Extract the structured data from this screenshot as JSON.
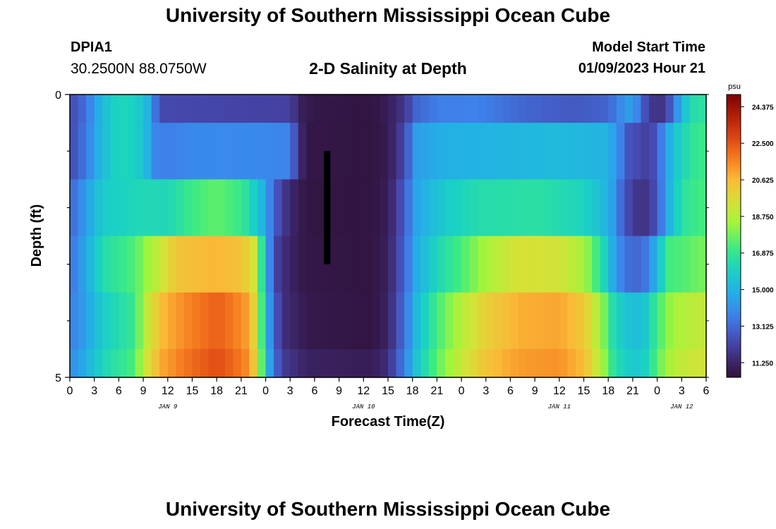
{
  "header": {
    "title": "University of Southern Mississippi Ocean Cube",
    "station_id": "DPIA1",
    "coordinates": "30.2500N  88.0750W",
    "subtitle": "2-D Salinity at Depth",
    "model_start_label": "Model Start Time",
    "model_start_value": "01/09/2023 Hour 21"
  },
  "footer": {
    "title": "University of Southern Mississippi Ocean Cube"
  },
  "chart_data": {
    "type": "heatmap",
    "title": "2-D Salinity at Depth",
    "xlabel": "Forecast Time(Z)",
    "ylabel": "Depth (ft)",
    "x_range_hours": [
      0,
      78
    ],
    "ylim": [
      0,
      5
    ],
    "y_tick_labels": [
      "0",
      "5"
    ],
    "x_tick_labels": [
      "0",
      "3",
      "6",
      "9",
      "12",
      "15",
      "18",
      "21",
      "0",
      "3",
      "6",
      "9",
      "12",
      "15",
      "18",
      "21",
      "0",
      "3",
      "6",
      "9",
      "12",
      "15",
      "18",
      "21",
      "0",
      "3",
      "6"
    ],
    "day_labels": [
      {
        "label": "JAN 9",
        "hour": 12
      },
      {
        "label": "JAN 10",
        "hour": 36
      },
      {
        "label": "JAN 11",
        "hour": 60
      },
      {
        "label": "JAN 12",
        "hour": 75
      }
    ],
    "colorbar": {
      "unit": "psu",
      "min": 10.5,
      "max": 25.0,
      "tick_labels": [
        "24.375",
        "22.500",
        "20.625",
        "18.750",
        "16.875",
        "15.000",
        "13.125",
        "11.250"
      ]
    },
    "depth_layers": [
      0.5,
      1.5,
      2.5,
      3.5,
      4.5
    ],
    "hours": [
      0,
      1,
      2,
      3,
      4,
      5,
      6,
      7,
      8,
      9,
      10,
      11,
      12,
      13,
      14,
      15,
      16,
      17,
      18,
      19,
      20,
      21,
      22,
      23,
      24,
      25,
      26,
      27,
      28,
      29,
      30,
      31,
      32,
      33,
      34,
      35,
      36,
      37,
      38,
      39,
      40,
      41,
      42,
      43,
      44,
      45,
      46,
      47,
      48,
      49,
      50,
      51,
      52,
      53,
      54,
      55,
      56,
      57,
      58,
      59,
      60,
      61,
      62,
      63,
      64,
      65,
      66,
      67,
      68,
      69,
      70,
      71,
      72,
      73,
      74,
      75,
      76,
      77
    ],
    "layer_keyframes": [
      {
        "depth": 0,
        "points": [
          [
            0,
            12.3
          ],
          [
            2,
            13.3
          ],
          [
            4,
            15.3
          ],
          [
            6,
            16.2
          ],
          [
            8,
            16.0
          ],
          [
            9.5,
            15.0
          ],
          [
            10.5,
            13.3
          ],
          [
            11.5,
            12.3
          ],
          [
            27,
            12.1
          ],
          [
            28.5,
            11.0
          ],
          [
            30,
            10.7
          ],
          [
            37,
            10.6
          ],
          [
            39,
            11.0
          ],
          [
            41,
            11.8
          ],
          [
            42.5,
            13.0
          ],
          [
            45,
            13.6
          ],
          [
            50,
            13.7
          ],
          [
            56,
            13.0
          ],
          [
            62,
            12.7
          ],
          [
            66,
            13.0
          ],
          [
            68,
            14.2
          ],
          [
            69,
            14.5
          ],
          [
            70,
            13.2
          ],
          [
            71,
            11.8
          ],
          [
            72.5,
            11.7
          ],
          [
            73.5,
            12.6
          ],
          [
            74.5,
            14.2
          ],
          [
            76,
            16.3
          ],
          [
            77,
            16.6
          ]
        ]
      },
      {
        "depth": 1,
        "points": [
          [
            0,
            12.3
          ],
          [
            2,
            13.5
          ],
          [
            4,
            15.3
          ],
          [
            6,
            16.2
          ],
          [
            8,
            16.0
          ],
          [
            9.5,
            15.0
          ],
          [
            10.5,
            13.8
          ],
          [
            12,
            13.6
          ],
          [
            15,
            13.9
          ],
          [
            20,
            13.9
          ],
          [
            24,
            13.9
          ],
          [
            27,
            13.7
          ],
          [
            28,
            11.7
          ],
          [
            29,
            10.7
          ],
          [
            37,
            10.6
          ],
          [
            39,
            10.9
          ],
          [
            41,
            12.3
          ],
          [
            42.5,
            14.4
          ],
          [
            46,
            14.9
          ],
          [
            60,
            15.2
          ],
          [
            66,
            15.0
          ],
          [
            67,
            14.2
          ],
          [
            68.5,
            12.6
          ],
          [
            70.5,
            12.1
          ],
          [
            71.5,
            12.4
          ],
          [
            72.5,
            13.6
          ],
          [
            74,
            15.5
          ],
          [
            76,
            16.6
          ],
          [
            77,
            17.0
          ]
        ]
      },
      {
        "depth": 2,
        "points": [
          [
            0,
            13.0
          ],
          [
            2,
            14.4
          ],
          [
            4,
            15.8
          ],
          [
            9,
            16.3
          ],
          [
            12,
            16.2
          ],
          [
            15,
            17.1
          ],
          [
            18,
            17.6
          ],
          [
            21,
            17.0
          ],
          [
            23,
            15.6
          ],
          [
            24,
            14.6
          ],
          [
            25,
            13.0
          ],
          [
            26,
            12.0
          ],
          [
            28,
            10.9
          ],
          [
            30,
            10.6
          ],
          [
            37,
            10.6
          ],
          [
            39,
            11.0
          ],
          [
            41,
            12.8
          ],
          [
            42.5,
            14.6
          ],
          [
            46,
            15.8
          ],
          [
            50,
            16.4
          ],
          [
            57,
            16.6
          ],
          [
            63,
            16.1
          ],
          [
            65,
            15.4
          ],
          [
            66.5,
            14.5
          ],
          [
            67.5,
            13.2
          ],
          [
            69,
            11.8
          ],
          [
            71,
            11.7
          ],
          [
            72,
            12.8
          ],
          [
            73.5,
            15.0
          ],
          [
            75,
            16.6
          ],
          [
            77,
            17.2
          ]
        ]
      },
      {
        "depth": 3,
        "points": [
          [
            0,
            13.3
          ],
          [
            2,
            14.7
          ],
          [
            4,
            16.4
          ],
          [
            8,
            17.4
          ],
          [
            10,
            18.6
          ],
          [
            13,
            20.3
          ],
          [
            18,
            20.7
          ],
          [
            21,
            20.4
          ],
          [
            22.5,
            19.4
          ],
          [
            23.5,
            16.8
          ],
          [
            24.5,
            13.8
          ],
          [
            25.5,
            12.0
          ],
          [
            27,
            11.2
          ],
          [
            29,
            10.7
          ],
          [
            37,
            10.6
          ],
          [
            39,
            11.1
          ],
          [
            41,
            13.0
          ],
          [
            42.5,
            14.8
          ],
          [
            45,
            16.2
          ],
          [
            48,
            17.3
          ],
          [
            51,
            18.5
          ],
          [
            55,
            19.5
          ],
          [
            60,
            19.4
          ],
          [
            63,
            18.5
          ],
          [
            65,
            16.8
          ],
          [
            66.5,
            14.8
          ],
          [
            68,
            13.3
          ],
          [
            70,
            13.0
          ],
          [
            71,
            13.8
          ],
          [
            72,
            15.3
          ],
          [
            73.5,
            17.2
          ],
          [
            76,
            17.5
          ],
          [
            77,
            17.8
          ]
        ]
      },
      {
        "depth": 4,
        "points": [
          [
            0,
            13.6
          ],
          [
            2,
            14.5
          ],
          [
            4,
            15.8
          ],
          [
            8,
            17.0
          ],
          [
            9,
            18.6
          ],
          [
            11,
            20.5
          ],
          [
            14,
            21.5
          ],
          [
            18,
            22.3
          ],
          [
            20,
            21.8
          ],
          [
            22,
            21.0
          ],
          [
            23,
            19.0
          ],
          [
            24,
            15.5
          ],
          [
            25,
            12.8
          ],
          [
            26.5,
            11.5
          ],
          [
            29,
            10.8
          ],
          [
            37,
            10.6
          ],
          [
            39,
            11.2
          ],
          [
            41,
            13.3
          ],
          [
            42.5,
            15.2
          ],
          [
            45,
            17.2
          ],
          [
            48,
            18.8
          ],
          [
            51,
            20.0
          ],
          [
            55,
            20.8
          ],
          [
            60,
            21.0
          ],
          [
            63,
            20.2
          ],
          [
            65,
            18.5
          ],
          [
            66.5,
            16.5
          ],
          [
            68,
            15.5
          ],
          [
            70,
            15.3
          ],
          [
            71,
            16.0
          ],
          [
            72,
            17.2
          ],
          [
            74,
            18.5
          ],
          [
            76,
            18.8
          ],
          [
            77,
            19.0
          ]
        ]
      }
    ],
    "annotation": {
      "type": "black-bar",
      "hour": 31.5,
      "depth_from": 1,
      "depth_to": 3
    }
  }
}
